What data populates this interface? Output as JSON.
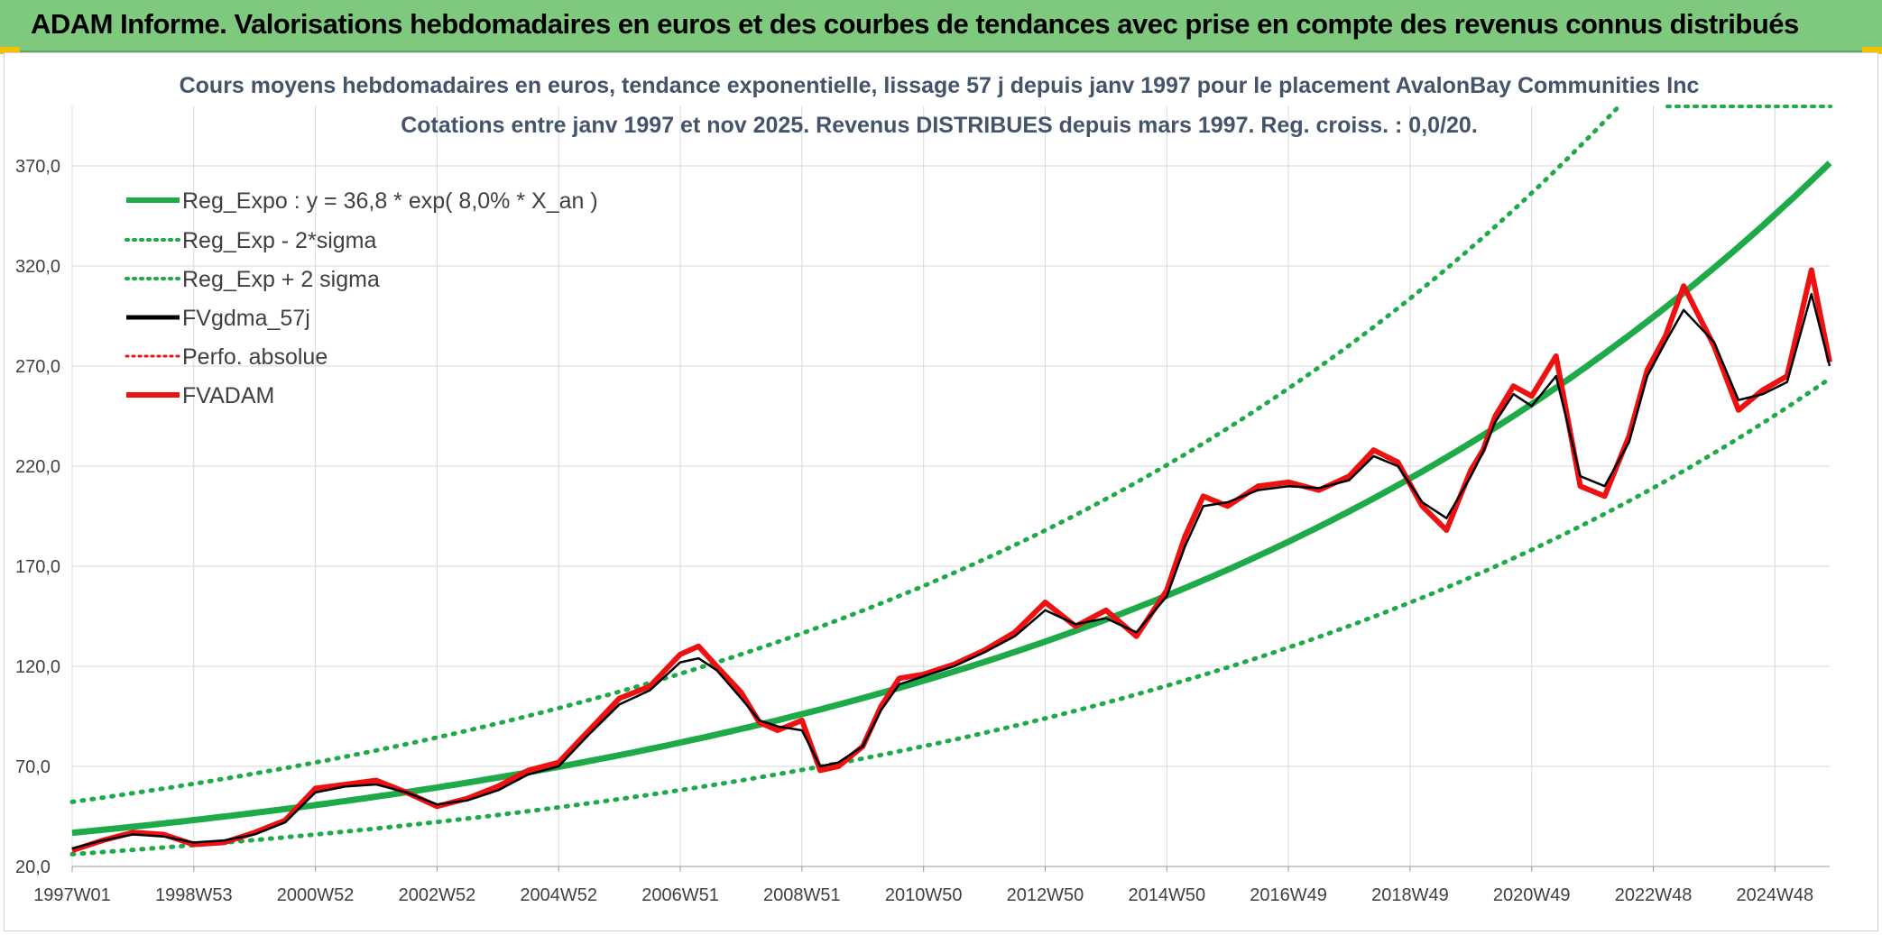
{
  "banner": {
    "title": "ADAM Informe. Valorisations hebdomadaires en euros et des courbes de tendances avec prise en compte des revenus connus distribués"
  },
  "colors": {
    "banner_bg": "#7fc97f",
    "regression": "#1faa4a",
    "sigma": "#1faa4a",
    "moving_average": "#000000",
    "perfo": "#ee1111",
    "fvadam": "#ee1111",
    "subtitle": "#44546a"
  },
  "chart_data": {
    "type": "line",
    "title": "Cours moyens hebdomadaires en euros, tendance exponentielle, lissage 57 j depuis janv 1997 pour le placement AvalonBay Communities Inc",
    "subtitle": "Cotations entre janv 1997 et nov 2025. Revenus DISTRIBUES depuis mars 1997. Reg. croiss. : 0,0/20.",
    "xlabel": "",
    "ylabel": "",
    "ylim": [
      20,
      400
    ],
    "yticks": [
      "20,0",
      "70,0",
      "120,0",
      "170,0",
      "220,0",
      "270,0",
      "320,0",
      "370,0"
    ],
    "xlim": [
      0,
      28.9
    ],
    "xticks": [
      "1997W01",
      "1998W53",
      "2000W52",
      "2002W52",
      "2004W52",
      "2006W51",
      "2008W51",
      "2010W50",
      "2012W50",
      "2014W50",
      "2016W49",
      "2018W49",
      "2020W49",
      "2022W48",
      "2024W48"
    ],
    "xtick_years": [
      0,
      2,
      4,
      6,
      8,
      10,
      12,
      14,
      16,
      18,
      20,
      22,
      24,
      26,
      28
    ],
    "grid": true,
    "legend_position": "top-left",
    "legend": [
      "Reg_Expo : y = 36,8 * exp( 8,0% *  X_an )",
      "Reg_Exp - 2*sigma",
      "Reg_Exp + 2 sigma",
      "FVgdma_57j",
      "Perfo. absolue",
      "FVADAM"
    ],
    "regression": {
      "a": 36.8,
      "rate": 0.08
    },
    "sigma_band": {
      "lower_factor": 0.71,
      "upper_factor": 1.42
    },
    "series": [
      {
        "name": "FVADAM",
        "x": [
          0,
          0.5,
          1,
          1.5,
          2,
          2.5,
          3,
          3.5,
          4,
          4.5,
          5,
          5.5,
          6,
          6.5,
          7,
          7.5,
          8,
          8.5,
          9,
          9.5,
          10,
          10.3,
          10.6,
          11,
          11.3,
          11.6,
          12,
          12.3,
          12.6,
          13,
          13.3,
          13.6,
          14,
          14.5,
          15,
          15.5,
          16,
          16.5,
          17,
          17.5,
          18,
          18.3,
          18.6,
          19,
          19.5,
          20,
          20.5,
          21,
          21.4,
          21.8,
          22.2,
          22.6,
          23,
          23.2,
          23.4,
          23.7,
          24,
          24.4,
          24.8,
          25.2,
          25.6,
          25.9,
          26.2,
          26.5,
          27,
          27.4,
          27.8,
          28.2,
          28.6,
          28.9
        ],
        "values": [
          28,
          33,
          37,
          36,
          31,
          32,
          37,
          43,
          59,
          61,
          63,
          57,
          50,
          54,
          60,
          68,
          72,
          88,
          104,
          110,
          126,
          130,
          120,
          107,
          92,
          88,
          93,
          68,
          70,
          80,
          100,
          114,
          116,
          121,
          128,
          137,
          152,
          140,
          148,
          135,
          158,
          185,
          205,
          200,
          210,
          212,
          208,
          215,
          228,
          222,
          200,
          188,
          218,
          228,
          245,
          260,
          255,
          275,
          210,
          205,
          235,
          268,
          285,
          310,
          280,
          248,
          258,
          265,
          318,
          272
        ]
      },
      {
        "name": "FVgdma_57j",
        "x": [
          0,
          0.5,
          1,
          1.5,
          2,
          2.5,
          3,
          3.5,
          4,
          4.5,
          5,
          5.5,
          6,
          6.5,
          7,
          7.5,
          8,
          8.5,
          9,
          9.5,
          10,
          10.3,
          10.6,
          11,
          11.3,
          11.6,
          12,
          12.3,
          12.6,
          13,
          13.3,
          13.6,
          14,
          14.5,
          15,
          15.5,
          16,
          16.5,
          17,
          17.5,
          18,
          18.3,
          18.6,
          19,
          19.5,
          20,
          20.5,
          21,
          21.4,
          21.8,
          22.2,
          22.6,
          23,
          23.2,
          23.4,
          23.7,
          24,
          24.4,
          24.8,
          25.2,
          25.6,
          25.9,
          26.2,
          26.5,
          27,
          27.4,
          27.8,
          28.2,
          28.6,
          28.9
        ],
        "values": [
          29,
          33,
          36,
          35,
          32,
          33,
          36,
          42,
          57,
          60,
          61,
          57,
          51,
          53,
          58,
          66,
          70,
          86,
          101,
          108,
          122,
          124,
          118,
          104,
          93,
          90,
          88,
          70,
          72,
          80,
          98,
          111,
          115,
          120,
          127,
          135,
          148,
          141,
          144,
          137,
          155,
          180,
          200,
          202,
          208,
          210,
          209,
          213,
          225,
          220,
          202,
          194,
          215,
          227,
          242,
          256,
          250,
          265,
          215,
          210,
          232,
          265,
          282,
          298,
          282,
          253,
          256,
          262,
          306,
          270
        ]
      }
    ]
  }
}
